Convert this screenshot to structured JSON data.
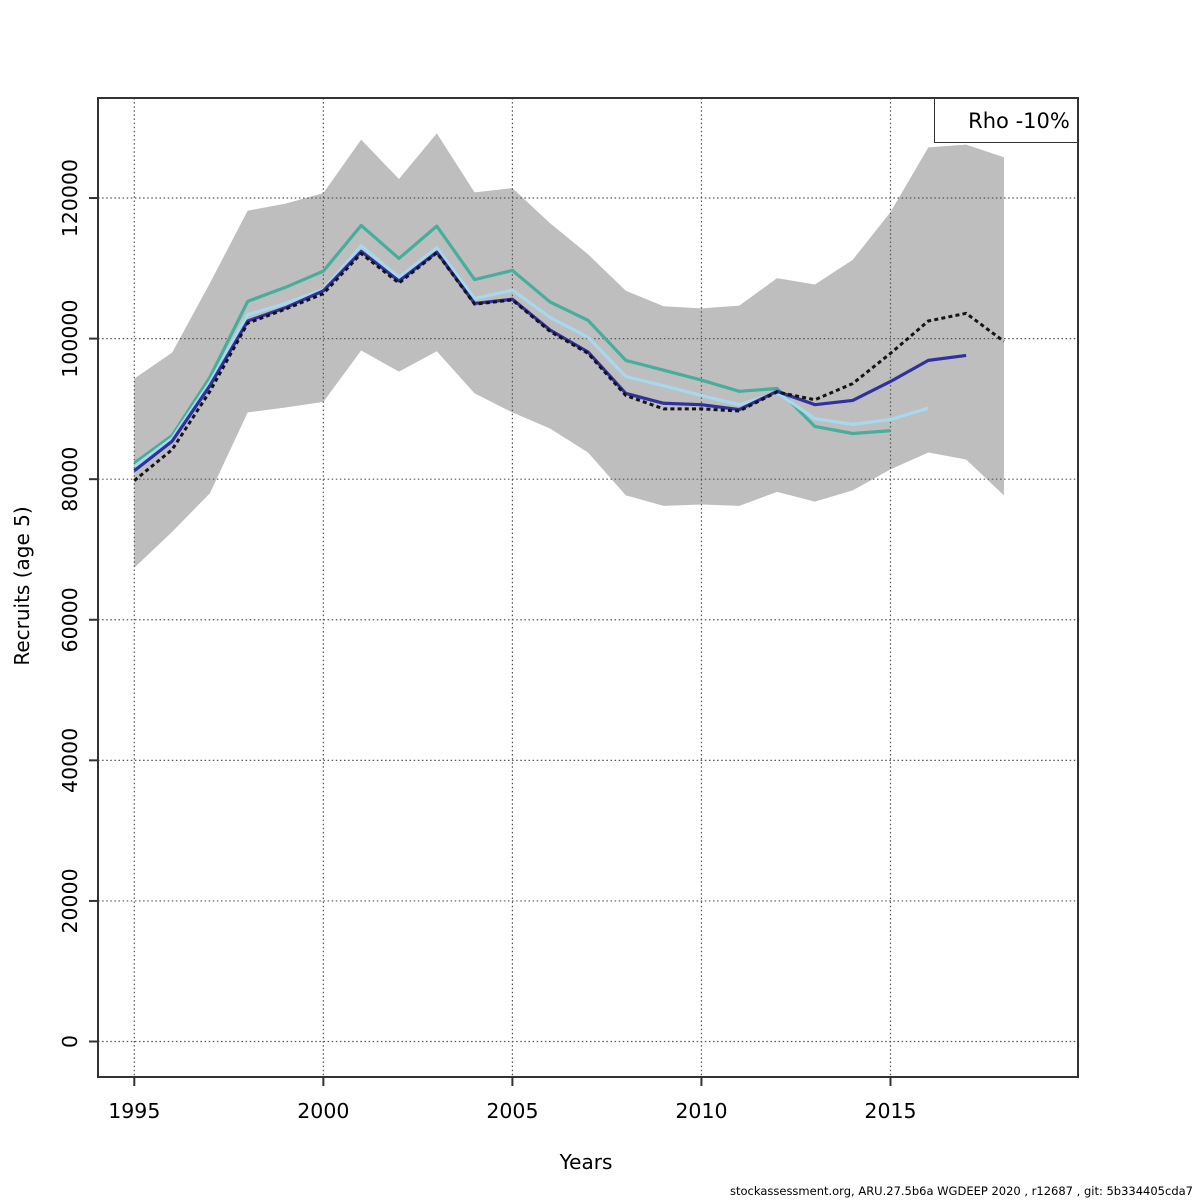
{
  "footer": "stockassessment.org, ARU.27.5b6a  WGDEEP  2020 , r12687 , git: 5b334405cda7",
  "axes": {
    "x_label": "Years",
    "y_label": "Recruits (age 5)",
    "x_ticks": [
      1995,
      2000,
      2005,
      2010,
      2015
    ],
    "y_ticks": [
      0,
      20000,
      40000,
      60000,
      80000,
      100000,
      120000
    ]
  },
  "chart_data": {
    "type": "line",
    "title": "",
    "xlabel": "Years",
    "ylabel": "Recruits (age 5)",
    "legend_label": "Rho -10%",
    "legend_position": "topright",
    "grid": true,
    "xlim": [
      1994.0,
      2020.0
    ],
    "ylim": [
      -5100,
      134500
    ],
    "colors": {
      "band": "#BEBEBE",
      "grid": "#555555",
      "frame": "#333333",
      "base_run": "#141414",
      "peel_2017": "#31309F",
      "peel_2016": "#A6D9EE",
      "peel_2015": "#47AE9B"
    },
    "band": {
      "name": "confidence-region",
      "color_key": "band",
      "years": [
        1995,
        1996,
        1997,
        1998,
        1999,
        2000,
        2001,
        2002,
        2003,
        2004,
        2005,
        2006,
        2007,
        2008,
        2009,
        2010,
        2011,
        2012,
        2013,
        2014,
        2015,
        2016,
        2017,
        2018
      ],
      "upper": [
        94300,
        98000,
        107900,
        118200,
        119200,
        120700,
        128300,
        122700,
        129200,
        120800,
        121400,
        116400,
        112000,
        106800,
        104600,
        104300,
        104700,
        108600,
        107700,
        111200,
        118000,
        127200,
        127600,
        125800
      ],
      "lower": [
        67400,
        72500,
        78000,
        89500,
        90200,
        91000,
        98300,
        95300,
        98200,
        92200,
        89500,
        87200,
        83800,
        77700,
        76200,
        76400,
        76200,
        78200,
        76800,
        78400,
        81400,
        83800,
        82800,
        77700
      ]
    },
    "series": [
      {
        "name": "retro-peel-2015",
        "color_key": "peel_2015",
        "dashed": false,
        "years": [
          1995,
          1996,
          1997,
          1998,
          1999,
          2000,
          2001,
          2002,
          2003,
          2004,
          2005,
          2006,
          2007,
          2008,
          2009,
          2010,
          2011,
          2012,
          2013,
          2014,
          2015
        ],
        "values": [
          82300,
          86200,
          94500,
          105300,
          107300,
          109600,
          116100,
          111400,
          116000,
          108400,
          109700,
          105200,
          102600,
          96900,
          95500,
          94100,
          92500,
          92900,
          87500,
          86500,
          86900
        ]
      },
      {
        "name": "retro-peel-2016",
        "color_key": "peel_2016",
        "dashed": false,
        "years": [
          1995,
          1996,
          1997,
          1998,
          1999,
          2000,
          2001,
          2002,
          2003,
          2004,
          2005,
          2006,
          2007,
          2008,
          2009,
          2010,
          2011,
          2012,
          2013,
          2014,
          2015,
          2016
        ],
        "values": [
          81800,
          85800,
          93800,
          103400,
          105000,
          107000,
          113200,
          108700,
          112900,
          105700,
          106900,
          103000,
          100200,
          94600,
          93300,
          91900,
          90600,
          92300,
          88600,
          87800,
          88500,
          90100
        ]
      },
      {
        "name": "retro-peel-2017",
        "color_key": "peel_2017",
        "dashed": false,
        "years": [
          1995,
          1996,
          1997,
          1998,
          1999,
          2000,
          2001,
          2002,
          2003,
          2004,
          2005,
          2006,
          2007,
          2008,
          2009,
          2010,
          2011,
          2012,
          2013,
          2014,
          2015,
          2016,
          2017
        ],
        "values": [
          81200,
          85400,
          93300,
          102500,
          104400,
          106800,
          112400,
          108200,
          112300,
          105000,
          105600,
          101200,
          98100,
          92200,
          90800,
          90600,
          89900,
          92500,
          90600,
          91200,
          93900,
          96900,
          97600
        ]
      },
      {
        "name": "base-run",
        "color_key": "base_run",
        "dashed": true,
        "years": [
          1995,
          1996,
          1997,
          1998,
          1999,
          2000,
          2001,
          2002,
          2003,
          2004,
          2005,
          2006,
          2007,
          2008,
          2009,
          2010,
          2011,
          2012,
          2013,
          2014,
          2015,
          2016,
          2017,
          2018
        ],
        "values": [
          79800,
          84200,
          92500,
          102200,
          104200,
          106400,
          112100,
          107900,
          112200,
          104900,
          105500,
          101000,
          97900,
          91900,
          90000,
          90000,
          89700,
          92400,
          91300,
          93600,
          97900,
          102500,
          103600,
          99600
        ]
      }
    ]
  }
}
